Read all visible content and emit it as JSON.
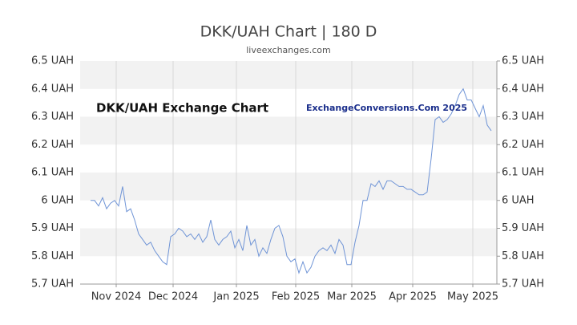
{
  "chart_data": {
    "type": "line",
    "title": "DKK/UAH Chart | 180 D",
    "subtitle": "liveexchanges.com",
    "annotations": [
      "DKK/UAH Exchange Chart",
      "ExchangeConversions.Com 2025"
    ],
    "series": [
      {
        "name": "DKK/UAH",
        "color": "#6f94d6",
        "values": [
          6.0,
          6.0,
          5.98,
          6.01,
          5.97,
          5.99,
          6.0,
          5.98,
          6.05,
          5.96,
          5.97,
          5.93,
          5.88,
          5.86,
          5.84,
          5.85,
          5.82,
          5.8,
          5.78,
          5.77,
          5.87,
          5.88,
          5.9,
          5.89,
          5.87,
          5.88,
          5.86,
          5.88,
          5.85,
          5.87,
          5.93,
          5.86,
          5.84,
          5.86,
          5.87,
          5.89,
          5.83,
          5.86,
          5.82,
          5.91,
          5.84,
          5.86,
          5.8,
          5.83,
          5.81,
          5.86,
          5.9,
          5.91,
          5.87,
          5.8,
          5.78,
          5.79,
          5.74,
          5.78,
          5.74,
          5.76,
          5.8,
          5.82,
          5.83,
          5.82,
          5.84,
          5.81,
          5.86,
          5.84,
          5.77,
          5.77,
          5.85,
          5.91,
          6.0,
          6.0,
          6.06,
          6.05,
          6.07,
          6.04,
          6.07,
          6.07,
          6.06,
          6.05,
          6.05,
          6.04,
          6.04,
          6.03,
          6.02,
          6.02,
          6.03,
          6.15,
          6.29,
          6.3,
          6.28,
          6.29,
          6.31,
          6.34,
          6.38,
          6.4,
          6.36,
          6.36,
          6.33,
          6.3,
          6.34,
          6.27,
          6.25
        ]
      }
    ],
    "xlim": [
      -2.6,
      101.4
    ],
    "xticks": [
      {
        "value": 6.4,
        "label": "Nov 2024"
      },
      {
        "value": 20.6,
        "label": "Dec 2024"
      },
      {
        "value": 36.4,
        "label": "Jan 2025"
      },
      {
        "value": 51.2,
        "label": "Feb 2025"
      },
      {
        "value": 65.2,
        "label": "Mar 2025"
      },
      {
        "value": 80.4,
        "label": "Apr 2025"
      },
      {
        "value": 95.4,
        "label": "May 2025"
      }
    ],
    "ylim": [
      5.7,
      6.5
    ],
    "yticks": [
      {
        "value": 5.7,
        "label": "5.7 UAH"
      },
      {
        "value": 5.8,
        "label": "5.8 UAH"
      },
      {
        "value": 5.9,
        "label": "5.9 UAH"
      },
      {
        "value": 6.0,
        "label": "6 UAH"
      },
      {
        "value": 6.1,
        "label": "6.1 UAH"
      },
      {
        "value": 6.2,
        "label": "6.2 UAH"
      },
      {
        "value": 6.3,
        "label": "6.3 UAH"
      },
      {
        "value": 6.4,
        "label": "6.4 UAH"
      },
      {
        "value": 6.5,
        "label": "6.5 UAH"
      }
    ],
    "y2lim": [
      5.7,
      6.5
    ],
    "y2ticks": [
      {
        "value": 5.7,
        "label": "5.7 UAH"
      },
      {
        "value": 5.8,
        "label": "5.8 UAH"
      },
      {
        "value": 5.9,
        "label": "5.9 UAH"
      },
      {
        "value": 6.0,
        "label": "6 UAH"
      },
      {
        "value": 6.1,
        "label": "6.1 UAH"
      },
      {
        "value": 6.2,
        "label": "6.2 UAH"
      },
      {
        "value": 6.3,
        "label": "6.3 UAH"
      },
      {
        "value": 6.4,
        "label": "6.4 UAH"
      },
      {
        "value": 6.5,
        "label": "6.5 UAH"
      }
    ],
    "grid": true
  }
}
